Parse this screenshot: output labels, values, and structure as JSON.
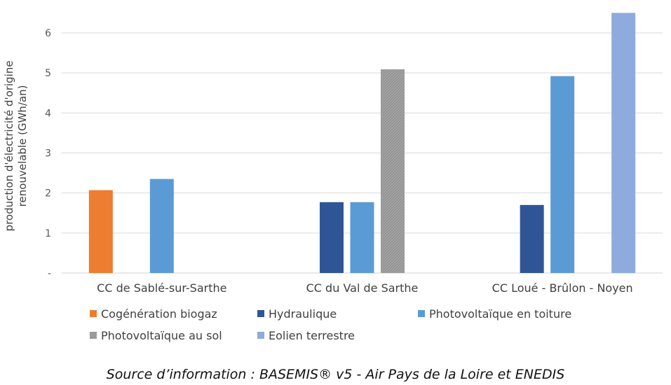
{
  "chart_data": {
    "type": "bar",
    "categories": [
      "CC de Sablé-sur-Sarthe",
      "CC du Val de Sarthe",
      "CC Loué - Brûlon - Noyen"
    ],
    "series": [
      {
        "name": "Cogénération biogaz",
        "color": "#ed7d31",
        "pattern": "solid",
        "values": [
          2.07,
          null,
          null
        ]
      },
      {
        "name": "Hydraulique",
        "color": "#2f5597",
        "pattern": "solid",
        "values": [
          null,
          1.77,
          1.7
        ]
      },
      {
        "name": "Photovoltaïque en toiture",
        "color": "#5b9bd5",
        "pattern": "solid",
        "values": [
          2.35,
          1.77,
          4.92
        ]
      },
      {
        "name": "Photovoltaïque au sol",
        "color": "#a5a5a5",
        "pattern": "hatched",
        "values": [
          null,
          5.09,
          null
        ]
      },
      {
        "name": "Eolien terrestre",
        "color": "#8faadc",
        "pattern": "solid",
        "values": [
          null,
          null,
          6.5
        ]
      }
    ],
    "ylabel_lines": [
      "production d'électricité d'origine",
      "renouvelable (GWh/an)"
    ],
    "ylim": [
      0,
      6.5
    ],
    "yticks": [
      {
        "value": 0,
        "label": "-"
      },
      {
        "value": 1,
        "label": "1"
      },
      {
        "value": 2,
        "label": "2"
      },
      {
        "value": 3,
        "label": "3"
      },
      {
        "value": 4,
        "label": "4"
      },
      {
        "value": 5,
        "label": "5"
      },
      {
        "value": 6,
        "label": "6"
      }
    ],
    "grid": true,
    "legend_position": "bottom"
  },
  "source": "Source d’information : BASEMIS® v5 - Air Pays de la Loire et ENEDIS"
}
